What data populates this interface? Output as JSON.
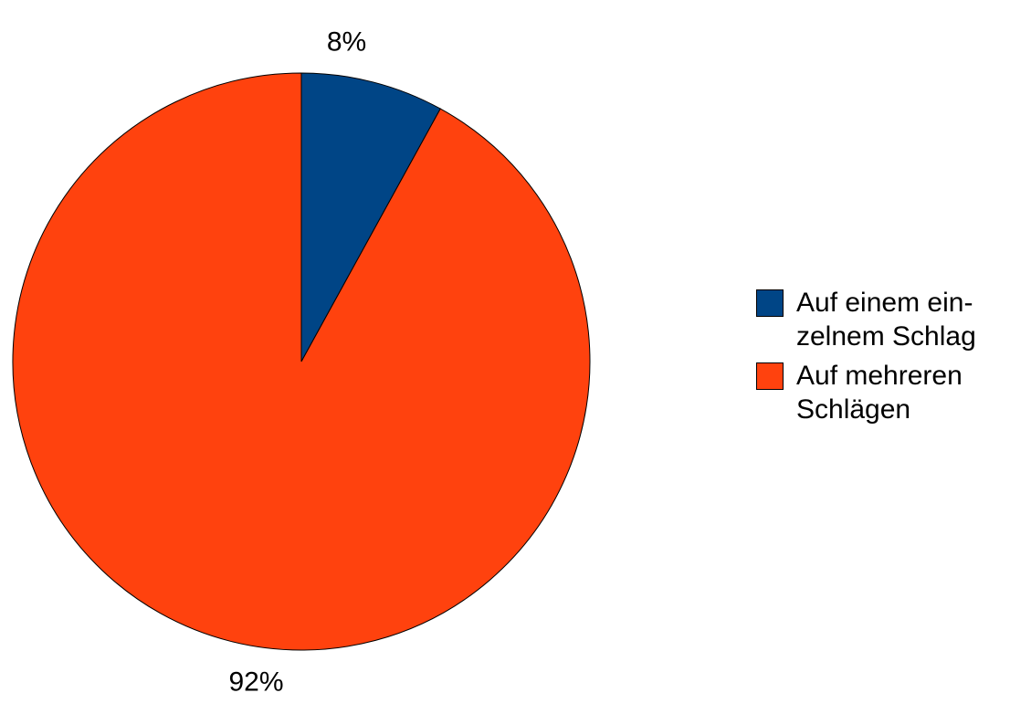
{
  "chart_data": {
    "type": "pie",
    "title": "",
    "slices": [
      {
        "name": "Auf einem ein-\nzelnem Schlag",
        "value": 8,
        "label": "8%",
        "color": "#004586"
      },
      {
        "name": "Auf mehreren\nSchlägen",
        "value": 92,
        "label": "92%",
        "color": "#ff420e"
      }
    ],
    "start_angle": "12 o'clock, clockwise",
    "legend_position": "right",
    "stroke_color": "#000000"
  }
}
